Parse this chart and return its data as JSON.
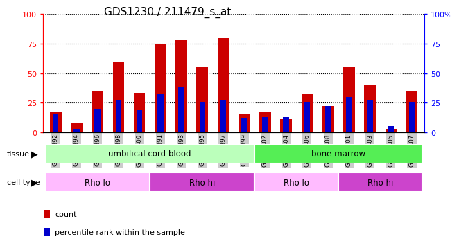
{
  "title": "GDS1230 / 211479_s_at",
  "samples": [
    "GSM51392",
    "GSM51394",
    "GSM51396",
    "GSM51398",
    "GSM51400",
    "GSM51391",
    "GSM51393",
    "GSM51395",
    "GSM51397",
    "GSM51399",
    "GSM51402",
    "GSM51404",
    "GSM51406",
    "GSM51408",
    "GSM51401",
    "GSM51403",
    "GSM51405",
    "GSM51407"
  ],
  "count_values": [
    17,
    8,
    35,
    60,
    33,
    75,
    78,
    55,
    80,
    15,
    17,
    11,
    32,
    22,
    55,
    40,
    3,
    35
  ],
  "percentile_values": [
    15,
    3,
    20,
    27,
    19,
    32,
    38,
    26,
    27,
    12,
    13,
    13,
    25,
    22,
    30,
    27,
    5,
    25
  ],
  "bar_color": "#cc0000",
  "percentile_color": "#0000cc",
  "ylim": [
    0,
    100
  ],
  "yticks": [
    0,
    25,
    50,
    75,
    100
  ],
  "tissue_spans": [
    {
      "label": "umbilical cord blood",
      "start": 0,
      "end": 9,
      "color": "#bbffbb"
    },
    {
      "label": "bone marrow",
      "start": 10,
      "end": 17,
      "color": "#55ee55"
    }
  ],
  "celltype_spans": [
    {
      "label": "Rho lo",
      "start": 0,
      "end": 4,
      "color": "#ffbbff"
    },
    {
      "label": "Rho hi",
      "start": 5,
      "end": 9,
      "color": "#cc44cc"
    },
    {
      "label": "Rho lo",
      "start": 10,
      "end": 13,
      "color": "#ffbbff"
    },
    {
      "label": "Rho hi",
      "start": 14,
      "end": 17,
      "color": "#cc44cc"
    }
  ],
  "legend_count_label": "count",
  "legend_pct_label": "percentile rank within the sample",
  "bar_width": 0.55,
  "percentile_bar_width": 0.28,
  "xtick_bg_color": "#cccccc",
  "left_axis_color": "red",
  "right_axis_color": "blue"
}
